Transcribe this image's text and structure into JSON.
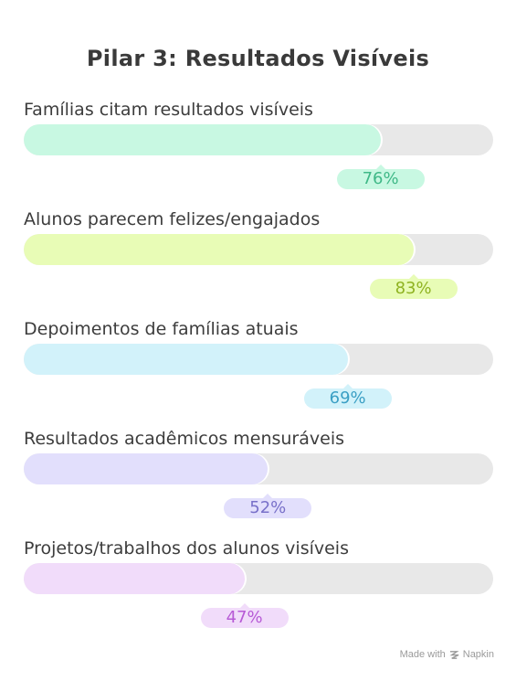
{
  "chart_data": {
    "type": "bar",
    "orientation": "horizontal",
    "title": "Pilar 3: Resultados Visíveis",
    "unit": "%",
    "ylim": [
      0,
      100
    ],
    "categories": [
      "Famílias citam resultados visíveis",
      "Alunos parecem felizes/engajados",
      "Depoimentos de famílias atuais",
      "Resultados acadêmicos mensuráveis",
      "Projetos/trabalhos dos alunos visíveis"
    ],
    "values": [
      76,
      83,
      69,
      52,
      47
    ],
    "labels": [
      "76%",
      "83%",
      "69%",
      "52%",
      "47%"
    ],
    "fill_colors": [
      "#c8f8e2",
      "#e8fcb6",
      "#d2f2fa",
      "#e2dffc",
      "#f1dcfa"
    ],
    "label_bg_colors": [
      "#c8f8e2",
      "#e8fcb6",
      "#d2f2fa",
      "#e2dffc",
      "#f1dcfa"
    ],
    "label_text_colors": [
      "#3fb887",
      "#8fb321",
      "#3a9fc4",
      "#7870c9",
      "#b75ad6"
    ],
    "track_color": "#e8e8e8"
  },
  "footer": {
    "made_with": "Made with",
    "brand": "Napkin"
  }
}
